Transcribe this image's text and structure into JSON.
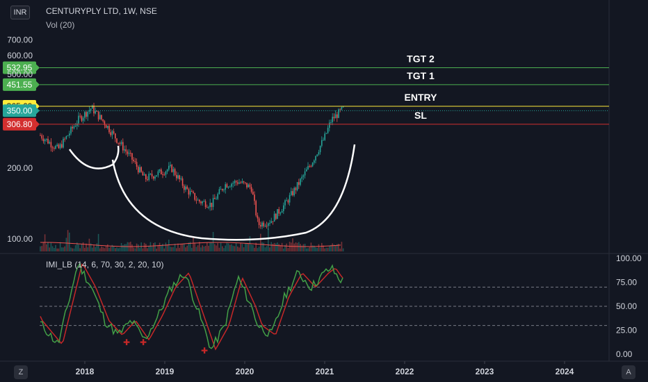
{
  "header": {
    "currency_badge": "INR",
    "title": "CENTURYPLY LTD, 1W, NSE",
    "volume_label": "Vol (20)",
    "indicator_label": "IMI_LB (14, 6, 70, 30, 2, 20, 10)"
  },
  "footer": {
    "left_button": "Z",
    "right_button": "A"
  },
  "colors": {
    "background": "#131722",
    "up_candle": "#26a69a",
    "down_candle": "#ef5350",
    "tgt_line": "#4caf50",
    "entry_line": "#ffeb3b",
    "sl_line": "#d32f2f",
    "imi_line": "#43a047",
    "imi_signal": "#c62828"
  },
  "chart_data": [
    {
      "type": "line",
      "title": "CENTURYPLY LTD, 1W, NSE",
      "x_tick_labels": [
        "2018",
        "2019",
        "2020",
        "2021",
        "2022",
        "2023",
        "2024"
      ],
      "y_tick_labels": [
        "700.00",
        "600.00",
        "500.00",
        "200.00",
        "100.00"
      ],
      "price_scale": "log",
      "series": [
        {
          "x": [
            "2017-03",
            "2017-06",
            "2017-09",
            "2017-12",
            "2018-02",
            "2018-04",
            "2018-06",
            "2018-08",
            "2018-10",
            "2018-12",
            "2019-02",
            "2019-04",
            "2019-06",
            "2019-08",
            "2019-10",
            "2019-12",
            "2020-02",
            "2020-03",
            "2020-05",
            "2020-07",
            "2020-09",
            "2020-11",
            "2021-01",
            "2021-02",
            "2021-03",
            "2021-04"
          ],
          "values": [
            300,
            280,
            240,
            320,
            360,
            310,
            260,
            220,
            180,
            190,
            200,
            165,
            145,
            140,
            170,
            175,
            165,
            115,
            120,
            140,
            170,
            210,
            270,
            320,
            340,
            360
          ]
        }
      ],
      "levels": [
        {
          "label": "TGT 2",
          "value": 532.95,
          "badge": "532.95"
        },
        {
          "label": "TGT 1",
          "value": 451.55,
          "badge": "451.55"
        },
        {
          "label": "ENTRY",
          "value": 365.6,
          "badge": "365.60"
        },
        {
          "label": "",
          "value": 350.0,
          "badge": "350.00"
        },
        {
          "label": "SL",
          "value": 306.8,
          "badge": "306.80"
        }
      ]
    },
    {
      "type": "line",
      "title": "IMI_LB (14, 6, 70, 30, 2, 20, 10)",
      "y_tick_labels": [
        "100.00",
        "75.00",
        "50.00",
        "25.00",
        "0.00"
      ],
      "ylim": [
        0,
        100
      ],
      "guide_levels": [
        70,
        50,
        30
      ],
      "series": [
        {
          "x": [
            "2017-03",
            "2017-06",
            "2017-09",
            "2017-12",
            "2018-02",
            "2018-04",
            "2018-06",
            "2018-08",
            "2018-10",
            "2018-12",
            "2019-02",
            "2019-04",
            "2019-06",
            "2019-08",
            "2019-10",
            "2019-12",
            "2020-02",
            "2020-03",
            "2020-05",
            "2020-07",
            "2020-09",
            "2020-11",
            "2021-01",
            "2021-02",
            "2021-03",
            "2021-04"
          ],
          "values": [
            80,
            35,
            10,
            95,
            70,
            35,
            20,
            35,
            15,
            40,
            70,
            85,
            45,
            5,
            30,
            80,
            50,
            30,
            20,
            60,
            85,
            70,
            85,
            90,
            80,
            75
          ]
        }
      ]
    }
  ]
}
